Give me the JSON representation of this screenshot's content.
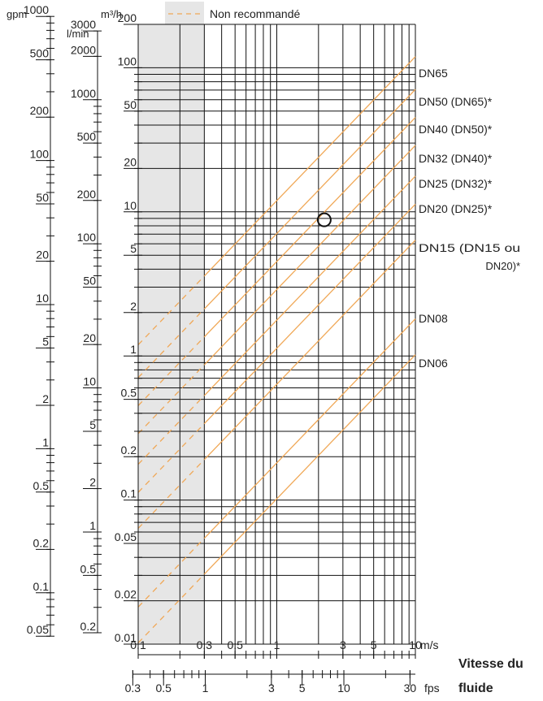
{
  "legend": {
    "label": "Non recommandé",
    "color": "#f0a857"
  },
  "chart_data": {
    "type": "line",
    "log_x": true,
    "log_y": true,
    "xlim": [
      0.1,
      10
    ],
    "ylim": [
      0.01,
      200
    ],
    "x_unit": "m/s",
    "y_unit_m3h": "m³/h",
    "not_recommended_range": [
      0.1,
      0.3
    ],
    "x_ticks": [
      {
        "v": 0.1,
        "label": "0.1"
      },
      {
        "v": 0.3,
        "label": "0.3"
      },
      {
        "v": 0.5,
        "label": "0.5"
      },
      {
        "v": 1,
        "label": "1"
      },
      {
        "v": 3,
        "label": "3"
      },
      {
        "v": 5,
        "label": "5"
      },
      {
        "v": 10,
        "label": "10"
      }
    ],
    "fps_unit": "fps",
    "fps_ticks": [
      {
        "v": 0.3,
        "label": "0.3"
      },
      {
        "v": 0.5,
        "label": "0.5"
      },
      {
        "v": 1,
        "label": "1"
      },
      {
        "v": 3,
        "label": "3"
      },
      {
        "v": 5,
        "label": "5"
      },
      {
        "v": 10,
        "label": "10"
      },
      {
        "v": 30,
        "label": "30"
      }
    ],
    "axis_title_line1": "Vitesse du",
    "axis_title_line2": "fluide",
    "m3h_unit": "m³/h",
    "m3h_ticks": [
      {
        "v": 200,
        "label": "200"
      },
      {
        "v": 100,
        "label": "100"
      },
      {
        "v": 50,
        "label": "50"
      },
      {
        "v": 20,
        "label": "20"
      },
      {
        "v": 10,
        "label": "10"
      },
      {
        "v": 5,
        "label": "5"
      },
      {
        "v": 2,
        "label": "2"
      },
      {
        "v": 1,
        "label": "1"
      },
      {
        "v": 0.5,
        "label": "0.5"
      },
      {
        "v": 0.2,
        "label": "0.2"
      },
      {
        "v": 0.1,
        "label": "0.1"
      },
      {
        "v": 0.05,
        "label": "0.05"
      },
      {
        "v": 0.02,
        "label": "0.02"
      },
      {
        "v": 0.01,
        "label": "0.01"
      }
    ],
    "lmin_unit": "l/min",
    "lmin_ticks": [
      {
        "v": 3000,
        "label": "3000"
      },
      {
        "v": 2000,
        "label": "2000"
      },
      {
        "v": 1000,
        "label": "1000"
      },
      {
        "v": 500,
        "label": "500"
      },
      {
        "v": 200,
        "label": "200"
      },
      {
        "v": 100,
        "label": "100"
      },
      {
        "v": 50,
        "label": "50"
      },
      {
        "v": 20,
        "label": "20"
      },
      {
        "v": 10,
        "label": "10"
      },
      {
        "v": 5,
        "label": "5"
      },
      {
        "v": 2,
        "label": "2"
      },
      {
        "v": 1,
        "label": "1"
      },
      {
        "v": 0.5,
        "label": "0.5"
      },
      {
        "v": 0.2,
        "label": "0.2"
      }
    ],
    "gpm_unit": "gpm",
    "gpm_ticks": [
      {
        "v": 1000,
        "label": "1000"
      },
      {
        "v": 500,
        "label": "500"
      },
      {
        "v": 200,
        "label": "200"
      },
      {
        "v": 100,
        "label": "100"
      },
      {
        "v": 50,
        "label": "50"
      },
      {
        "v": 20,
        "label": "20"
      },
      {
        "v": 10,
        "label": "10"
      },
      {
        "v": 5,
        "label": "5"
      },
      {
        "v": 2,
        "label": "2"
      },
      {
        "v": 1,
        "label": "1"
      },
      {
        "v": 0.5,
        "label": "0.5"
      },
      {
        "v": 0.2,
        "label": "0.2"
      },
      {
        "v": 0.1,
        "label": "0.1"
      },
      {
        "v": 0.05,
        "label": "0.05"
      }
    ],
    "series": [
      {
        "name": "DN65",
        "q_at_10": 119.5
      },
      {
        "name": "DN50 (DN65)*",
        "q_at_10": 70.7
      },
      {
        "name": "DN40 (DN50)*",
        "q_at_10": 45.2
      },
      {
        "name": "DN32 (DN40)*",
        "q_at_10": 28.9
      },
      {
        "name": "DN25 (DN32)*",
        "q_at_10": 17.7
      },
      {
        "name": "DN20 (DN25)*",
        "q_at_10": 11.3
      },
      {
        "name": "DN15 (DN15 ou DN20)*",
        "q_at_10": 6.36
      },
      {
        "name": "DN08",
        "q_at_10": 1.81
      },
      {
        "name": "DN06",
        "q_at_10": 1.02
      }
    ],
    "series_label_lines": [
      [
        "DN65"
      ],
      [
        "DN50 (DN65)*"
      ],
      [
        "DN40 (DN50)*"
      ],
      [
        "DN32 (DN40)*"
      ],
      [
        "DN25 (DN32)*"
      ],
      [
        "DN20 (DN25)*"
      ],
      [
        "DN15  (DN15 ou",
        "DN20)*"
      ],
      [
        "DN08"
      ],
      [
        "DN06"
      ]
    ],
    "marker": {
      "x": 2.2,
      "y": 8.8
    }
  }
}
